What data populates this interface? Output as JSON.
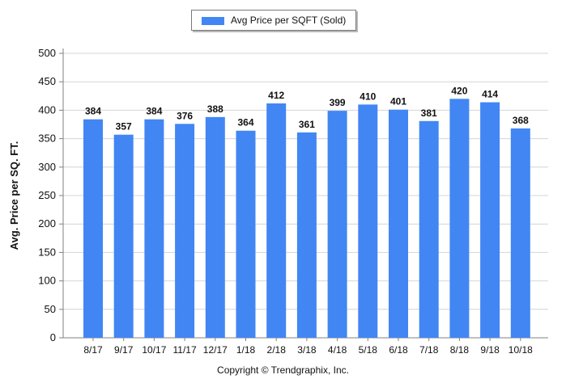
{
  "legend": {
    "label": "Avg Price per SQFT (Sold)"
  },
  "colors": {
    "bar": "#4286f4",
    "grid": "#d4d4d4",
    "axis": "#808080",
    "text": "#111111"
  },
  "footer": {
    "copyright": "Copyright © Trendgraphix, Inc."
  },
  "chart_data": {
    "type": "bar",
    "categories": [
      "8/17",
      "9/17",
      "10/17",
      "11/17",
      "12/17",
      "1/18",
      "2/18",
      "3/18",
      "4/18",
      "5/18",
      "6/18",
      "7/18",
      "8/18",
      "9/18",
      "10/18"
    ],
    "series": [
      {
        "name": "Avg Price per SQFT (Sold)",
        "values": [
          384,
          357,
          384,
          376,
          388,
          364,
          412,
          361,
          399,
          410,
          401,
          381,
          420,
          414,
          368
        ]
      }
    ],
    "ylabel": "Avg. Price per SQ. FT.",
    "ylim": [
      0,
      500
    ],
    "yticks": [
      0,
      50,
      100,
      150,
      200,
      250,
      300,
      350,
      400,
      450,
      500
    ],
    "grid": true,
    "data_labels": true,
    "legend_position": "top-center"
  }
}
